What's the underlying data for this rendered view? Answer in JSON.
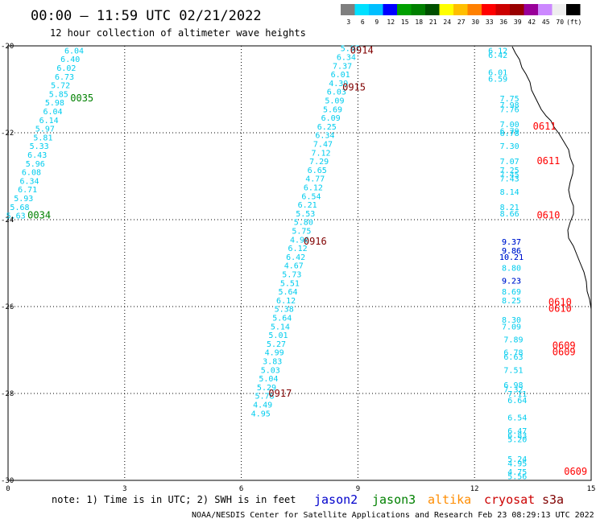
{
  "chart_data": {
    "type": "scatter",
    "title": "00:00 – 11:59 UTC 02/21/2022",
    "subtitle": "12 hour collection of altimeter wave heights",
    "x_ticks": [
      "0",
      "3",
      "6",
      "9",
      "12",
      "15"
    ],
    "y_ticks": [
      "-20",
      "-22",
      "-24",
      "-26",
      "-28",
      "-30"
    ],
    "xlim": [
      0,
      15
    ],
    "ylim": [
      -30,
      -20
    ],
    "grid": true,
    "colorbar": {
      "labels": [
        "3",
        "6",
        "9",
        "12",
        "15",
        "18",
        "21",
        "24",
        "27",
        "30",
        "33",
        "36",
        "39",
        "42",
        "45",
        "70",
        "(ft)"
      ],
      "colors": [
        "#7f7f7f",
        "#00e0ff",
        "#00bfff",
        "#0000ff",
        "#00a000",
        "#008000",
        "#005000",
        "#ffff00",
        "#ffbf00",
        "#ff8000",
        "#ff0000",
        "#cc0000",
        "#990000",
        "#990099",
        "#cc88ff",
        "#eeeeee",
        "#000000"
      ]
    },
    "passes": [
      {
        "label": "0035",
        "color": "#008000",
        "x": 1.9,
        "y": -21.2
      },
      {
        "label": "0034",
        "color": "#008000",
        "x": 0.8,
        "y": -23.9
      },
      {
        "label": "0914",
        "color": "#800000",
        "x": 9.1,
        "y": -20.1
      },
      {
        "label": "0915",
        "color": "#800000",
        "x": 8.9,
        "y": -20.95
      },
      {
        "label": "0916",
        "color": "#800000",
        "x": 7.9,
        "y": -24.5
      },
      {
        "label": "0917",
        "color": "#800000",
        "x": 7.0,
        "y": -28.0
      },
      {
        "label": "0611",
        "color": "#ff0000",
        "x": 13.8,
        "y": -21.85
      },
      {
        "label": "0611",
        "color": "#ff0000",
        "x": 13.9,
        "y": -22.65
      },
      {
        "label": "0610",
        "color": "#ff0000",
        "x": 13.9,
        "y": -23.9
      },
      {
        "label": "0610",
        "color": "#ff0000",
        "x": 14.2,
        "y": -25.9
      },
      {
        "label": "0610",
        "color": "#ff0000",
        "x": 14.2,
        "y": -26.05
      },
      {
        "label": "0609",
        "color": "#ff0000",
        "x": 14.3,
        "y": -26.9
      },
      {
        "label": "0609",
        "color": "#ff0000",
        "x": 14.3,
        "y": -27.05
      },
      {
        "label": "0609",
        "color": "#ff0000",
        "x": 14.6,
        "y": -29.8
      }
    ],
    "series": [
      {
        "color": "#00ccee",
        "points": [
          [
            1.7,
            -20.1,
            "6.04"
          ],
          [
            1.6,
            -20.3,
            "6.40"
          ],
          [
            1.5,
            -20.5,
            "6.02"
          ],
          [
            1.45,
            -20.7,
            "6.73"
          ],
          [
            1.35,
            -20.9,
            "5.72"
          ],
          [
            1.3,
            -21.1,
            "5.85"
          ],
          [
            1.2,
            -21.3,
            "5.98"
          ],
          [
            1.15,
            -21.5,
            "6.04"
          ],
          [
            1.05,
            -21.7,
            "6.14"
          ],
          [
            0.95,
            -21.9,
            "5.97"
          ],
          [
            0.9,
            -22.1,
            "5.81"
          ],
          [
            0.8,
            -22.3,
            "5.33"
          ],
          [
            0.75,
            -22.5,
            "6.43"
          ],
          [
            0.7,
            -22.7,
            "5.96"
          ],
          [
            0.6,
            -22.9,
            "6.08"
          ],
          [
            0.55,
            -23.1,
            "6.34"
          ],
          [
            0.5,
            -23.3,
            "6.71"
          ],
          [
            0.4,
            -23.5,
            "5.93"
          ],
          [
            0.3,
            -23.7,
            "5.68"
          ],
          [
            0.2,
            -23.9,
            "5.63"
          ]
        ]
      },
      {
        "color": "#00ccee",
        "points": [
          [
            8.8,
            -20.05,
            "5.07"
          ],
          [
            8.7,
            -20.25,
            "6.34"
          ],
          [
            8.6,
            -20.45,
            "7.37"
          ],
          [
            8.55,
            -20.65,
            "6.01"
          ],
          [
            8.5,
            -20.85,
            "4.39"
          ],
          [
            8.45,
            -21.05,
            "6.03"
          ],
          [
            8.4,
            -21.25,
            "5.09"
          ],
          [
            8.35,
            -21.45,
            "5.69"
          ],
          [
            8.3,
            -21.65,
            "6.09"
          ],
          [
            8.2,
            -21.85,
            "6.25"
          ],
          [
            8.15,
            -22.05,
            "6.34"
          ],
          [
            8.1,
            -22.25,
            "7.47"
          ],
          [
            8.05,
            -22.45,
            "7.12"
          ],
          [
            8.0,
            -22.65,
            "7.29"
          ],
          [
            7.95,
            -22.85,
            "6.65"
          ],
          [
            7.9,
            -23.05,
            "4.77"
          ],
          [
            7.85,
            -23.25,
            "6.12"
          ],
          [
            7.8,
            -23.45,
            "6.54"
          ],
          [
            7.7,
            -23.65,
            "6.21"
          ],
          [
            7.65,
            -23.85,
            "5.53"
          ],
          [
            7.6,
            -24.05,
            "5.80"
          ],
          [
            7.55,
            -24.25,
            "5.75"
          ],
          [
            7.5,
            -24.45,
            "4.96"
          ],
          [
            7.45,
            -24.65,
            "6.12"
          ],
          [
            7.4,
            -24.85,
            "6.42"
          ],
          [
            7.35,
            -25.05,
            "4.67"
          ],
          [
            7.3,
            -25.25,
            "5.73"
          ],
          [
            7.25,
            -25.45,
            "5.51"
          ],
          [
            7.2,
            -25.65,
            "5.64"
          ],
          [
            7.15,
            -25.85,
            "6.12"
          ],
          [
            7.1,
            -26.05,
            "5.38"
          ],
          [
            7.05,
            -26.25,
            "5.64"
          ],
          [
            7.0,
            -26.45,
            "5.14"
          ],
          [
            6.95,
            -26.65,
            "5.01"
          ],
          [
            6.9,
            -26.85,
            "5.27"
          ],
          [
            6.85,
            -27.05,
            "4.99"
          ],
          [
            6.8,
            -27.25,
            "3.83"
          ],
          [
            6.75,
            -27.45,
            "5.03"
          ],
          [
            6.7,
            -27.65,
            "5.04"
          ],
          [
            6.65,
            -27.85,
            "5.29"
          ],
          [
            6.6,
            -28.05,
            "5.78"
          ],
          [
            6.55,
            -28.25,
            "4.49"
          ],
          [
            6.5,
            -28.45,
            "4.95"
          ]
        ]
      },
      {
        "color": "#00ccee",
        "points": [
          [
            12.6,
            -20.1,
            "6.12"
          ],
          [
            12.6,
            -20.2,
            "6.42"
          ],
          [
            12.6,
            -20.6,
            "6.01"
          ],
          [
            12.6,
            -20.75,
            "6.59"
          ],
          [
            12.9,
            -21.2,
            "7.75"
          ],
          [
            12.9,
            -21.35,
            "7.98"
          ],
          [
            12.9,
            -21.45,
            "7.76"
          ],
          [
            12.9,
            -21.8,
            "7.00"
          ],
          [
            12.9,
            -21.95,
            "6.79"
          ],
          [
            12.9,
            -22.0,
            "6.78"
          ],
          [
            12.9,
            -22.3,
            "7.30"
          ],
          [
            12.9,
            -22.65,
            "7.07"
          ],
          [
            12.9,
            -22.85,
            "7.25"
          ],
          [
            12.9,
            -22.95,
            "7.45"
          ],
          [
            12.9,
            -23.05,
            "7.43"
          ],
          [
            12.9,
            -23.35,
            "8.14"
          ],
          [
            12.9,
            -23.7,
            "8.21"
          ],
          [
            12.9,
            -23.85,
            "8.66"
          ],
          [
            12.95,
            -24.5,
            "9.37"
          ],
          [
            12.95,
            -24.7,
            "9.86"
          ],
          [
            12.95,
            -24.85,
            "10.21"
          ],
          [
            12.95,
            -25.1,
            "8.80"
          ],
          [
            12.95,
            -25.4,
            "9.23"
          ],
          [
            12.95,
            -25.65,
            "8.69"
          ],
          [
            12.95,
            -25.85,
            "8.25"
          ],
          [
            12.95,
            -26.3,
            "8.30"
          ],
          [
            12.95,
            -26.45,
            "7.09"
          ],
          [
            13.0,
            -26.75,
            "7.89"
          ],
          [
            13.0,
            -27.05,
            "6.78"
          ],
          [
            13.0,
            -27.15,
            "6.63"
          ],
          [
            13.0,
            -27.45,
            "7.51"
          ],
          [
            13.0,
            -27.8,
            "6.98"
          ],
          [
            13.0,
            -27.9,
            "7.32"
          ],
          [
            13.1,
            -28.0,
            "7.11"
          ],
          [
            13.1,
            -28.15,
            "6.64"
          ],
          [
            13.1,
            -28.55,
            "6.54"
          ],
          [
            13.1,
            -28.85,
            "6.47"
          ],
          [
            13.1,
            -28.95,
            "6.83"
          ],
          [
            13.1,
            -29.05,
            "5.20"
          ],
          [
            13.1,
            -29.5,
            "5.24"
          ],
          [
            13.1,
            -29.6,
            "4.95"
          ],
          [
            13.1,
            -29.8,
            "4.75"
          ],
          [
            13.1,
            -29.9,
            "5.56"
          ]
        ]
      },
      {
        "color": "#0000cc",
        "points": [
          [
            12.95,
            -24.5,
            "9.37"
          ],
          [
            12.95,
            -24.7,
            "9.86"
          ],
          [
            12.95,
            -24.85,
            "10.21"
          ],
          [
            12.95,
            -25.4,
            "9.23"
          ]
        ]
      }
    ]
  },
  "footer": {
    "note": "note: 1) Time is in UTC; 2) SWH is in feet",
    "legend": [
      {
        "label": "jason2",
        "color": "#0000cc"
      },
      {
        "label": "jason3",
        "color": "#008000"
      },
      {
        "label": "altika",
        "color": "#ff8c00"
      },
      {
        "label": "cryosat",
        "color": "#cc0000"
      },
      {
        "label": "s3a",
        "color": "#800000"
      }
    ],
    "credit": "NOAA/NESDIS Center for Satellite Applications and Research    Feb 23 08:29:13 UTC 2022"
  }
}
